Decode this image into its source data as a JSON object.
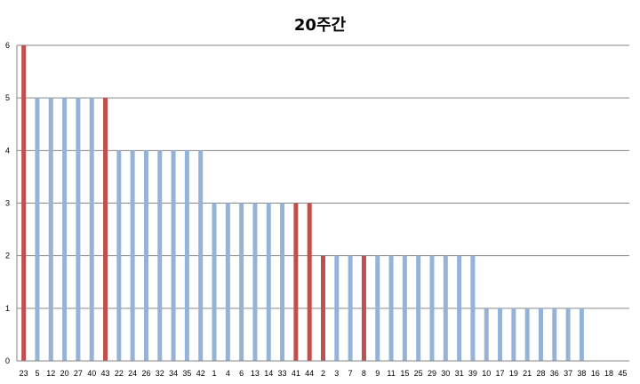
{
  "chart_data": {
    "type": "bar",
    "title": "20주간",
    "xlabel": "",
    "ylabel": "",
    "ylim": [
      0,
      6
    ],
    "yticks": [
      "0",
      "1",
      "2",
      "3",
      "4",
      "5",
      "6"
    ],
    "grid": true,
    "legend": "none",
    "colors": {
      "default": "#95b3d7",
      "highlight": "#c0504d",
      "grid": "#868686"
    },
    "categories": [
      "23",
      "5",
      "12",
      "20",
      "27",
      "40",
      "43",
      "22",
      "24",
      "26",
      "32",
      "34",
      "35",
      "42",
      "1",
      "4",
      "6",
      "13",
      "14",
      "33",
      "41",
      "44",
      "2",
      "3",
      "7",
      "8",
      "9",
      "11",
      "15",
      "25",
      "29",
      "30",
      "31",
      "39",
      "10",
      "17",
      "19",
      "21",
      "28",
      "36",
      "37",
      "38",
      "16",
      "18",
      "45"
    ],
    "values": [
      6,
      5,
      5,
      5,
      5,
      5,
      5,
      4,
      4,
      4,
      4,
      4,
      4,
      4,
      3,
      3,
      3,
      3,
      3,
      3,
      3,
      3,
      2,
      2,
      2,
      2,
      2,
      2,
      2,
      2,
      2,
      2,
      2,
      2,
      1,
      1,
      1,
      1,
      1,
      1,
      1,
      1,
      0,
      0,
      0
    ],
    "highlight": [
      true,
      false,
      false,
      false,
      false,
      false,
      true,
      false,
      false,
      false,
      false,
      false,
      false,
      false,
      false,
      false,
      false,
      false,
      false,
      false,
      true,
      true,
      true,
      false,
      false,
      true,
      false,
      false,
      false,
      false,
      false,
      false,
      false,
      false,
      false,
      false,
      false,
      false,
      false,
      false,
      false,
      false,
      false,
      false,
      false
    ]
  }
}
